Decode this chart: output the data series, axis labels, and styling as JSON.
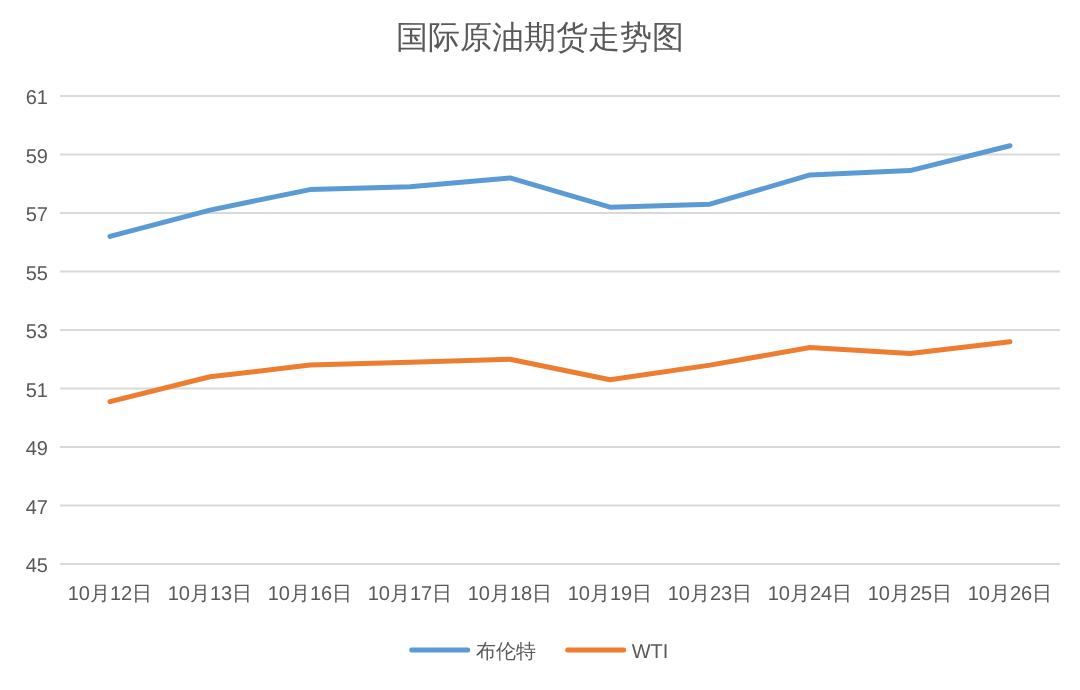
{
  "chart_data": {
    "type": "line",
    "title": "国际原油期货走势图",
    "categories": [
      "10月12日",
      "10月13日",
      "10月16日",
      "10月17日",
      "10月18日",
      "10月19日",
      "10月23日",
      "10月24日",
      "10月25日",
      "10月26日"
    ],
    "series": [
      {
        "name": "布伦特",
        "color": "#5b9bd5",
        "values": [
          56.2,
          57.1,
          57.8,
          57.9,
          58.2,
          57.2,
          57.3,
          58.3,
          58.45,
          59.3
        ]
      },
      {
        "name": "WTI",
        "color": "#ed7d31",
        "values": [
          50.55,
          51.4,
          51.8,
          51.9,
          52.0,
          51.3,
          51.8,
          52.4,
          52.2,
          52.6
        ]
      }
    ],
    "ylim": [
      45,
      61
    ],
    "yticks": [
      45,
      47,
      49,
      51,
      53,
      55,
      57,
      59,
      61
    ],
    "grid": "y",
    "legend": "bottom",
    "marker": "none",
    "line_style": "solid"
  }
}
